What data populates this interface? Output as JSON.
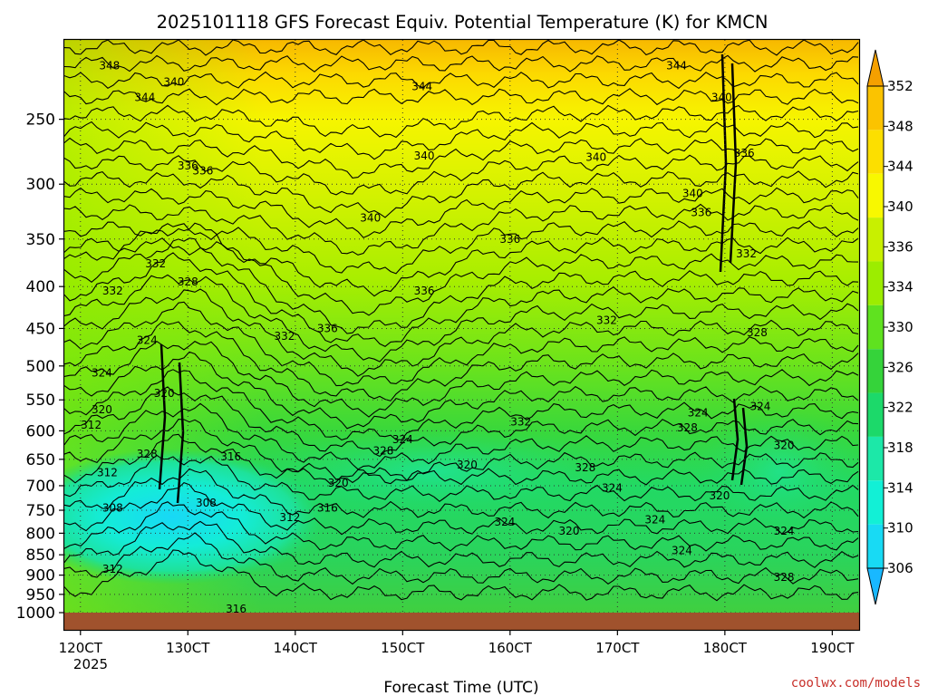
{
  "chart_data": {
    "type": "contour",
    "title": "2025101118 GFS Forecast Equiv. Potential Temperature (K) for KMCN",
    "xlabel": "Forecast Time (UTC)",
    "ylabel": "",
    "x_ticks": [
      "120CT",
      "130CT",
      "140CT",
      "150CT",
      "160CT",
      "170CT",
      "180CT",
      "190CT"
    ],
    "x_tick_values": [
      12,
      13,
      14,
      15,
      16,
      17,
      18,
      19
    ],
    "x_year_label": "2025",
    "xlim": [
      11.85,
      19.25
    ],
    "y_ticks": [
      "250",
      "300",
      "350",
      "400",
      "450",
      "500",
      "550",
      "600",
      "650",
      "700",
      "750",
      "800",
      "850",
      "900",
      "950",
      "1000"
    ],
    "y_tick_values": [
      250,
      300,
      350,
      400,
      450,
      500,
      550,
      600,
      650,
      700,
      750,
      800,
      850,
      900,
      950,
      1000
    ],
    "ylim": [
      200,
      1015
    ],
    "y_scale": "log-pressure (inverted)",
    "colorbar": {
      "labels": [
        "352",
        "348",
        "344",
        "340",
        "336",
        "334",
        "330",
        "326",
        "322",
        "318",
        "314",
        "310",
        "306"
      ],
      "colors": [
        "#f5a000",
        "#fbc300",
        "#fcdf00",
        "#f8f800",
        "#c8f000",
        "#9ced00",
        "#5fe21f",
        "#35d33a",
        "#1cd96a",
        "#1ce8a8",
        "#12f0d6",
        "#18daf4",
        "#19b8ff"
      ]
    },
    "ground_color": "#a0522d",
    "contour_labels": [
      {
        "text": "348",
        "t": 12.27,
        "p": 215
      },
      {
        "text": "340",
        "t": 12.87,
        "p": 225
      },
      {
        "text": "344",
        "t": 12.6,
        "p": 235
      },
      {
        "text": "344",
        "t": 15.18,
        "p": 228
      },
      {
        "text": "344",
        "t": 17.55,
        "p": 215
      },
      {
        "text": "340",
        "t": 17.97,
        "p": 235
      },
      {
        "text": "336",
        "t": 13.0,
        "p": 285
      },
      {
        "text": "336",
        "t": 13.14,
        "p": 289
      },
      {
        "text": "340",
        "t": 15.2,
        "p": 277
      },
      {
        "text": "340",
        "t": 16.8,
        "p": 278
      },
      {
        "text": "336",
        "t": 18.18,
        "p": 275
      },
      {
        "text": "340",
        "t": 17.7,
        "p": 308
      },
      {
        "text": "336",
        "t": 17.78,
        "p": 325
      },
      {
        "text": "340",
        "t": 14.7,
        "p": 330
      },
      {
        "text": "336",
        "t": 16.0,
        "p": 350
      },
      {
        "text": "332",
        "t": 18.2,
        "p": 365
      },
      {
        "text": "332",
        "t": 12.7,
        "p": 375
      },
      {
        "text": "328",
        "t": 13.0,
        "p": 395
      },
      {
        "text": "332",
        "t": 12.3,
        "p": 405
      },
      {
        "text": "336",
        "t": 15.2,
        "p": 405
      },
      {
        "text": "332",
        "t": 13.9,
        "p": 460
      },
      {
        "text": "336",
        "t": 14.3,
        "p": 450
      },
      {
        "text": "332",
        "t": 16.9,
        "p": 440
      },
      {
        "text": "328",
        "t": 18.3,
        "p": 455
      },
      {
        "text": "324",
        "t": 12.62,
        "p": 465
      },
      {
        "text": "324",
        "t": 12.2,
        "p": 510
      },
      {
        "text": "320",
        "t": 12.78,
        "p": 540
      },
      {
        "text": "320",
        "t": 12.2,
        "p": 565
      },
      {
        "text": "312",
        "t": 12.1,
        "p": 590
      },
      {
        "text": "324",
        "t": 17.75,
        "p": 570
      },
      {
        "text": "324",
        "t": 18.33,
        "p": 560
      },
      {
        "text": "332",
        "t": 16.1,
        "p": 585
      },
      {
        "text": "328",
        "t": 17.65,
        "p": 595
      },
      {
        "text": "324",
        "t": 15.0,
        "p": 615
      },
      {
        "text": "320",
        "t": 18.55,
        "p": 625
      },
      {
        "text": "328",
        "t": 12.62,
        "p": 640
      },
      {
        "text": "316",
        "t": 13.4,
        "p": 645
      },
      {
        "text": "328",
        "t": 14.82,
        "p": 635
      },
      {
        "text": "320",
        "t": 15.6,
        "p": 660
      },
      {
        "text": "328",
        "t": 16.7,
        "p": 665
      },
      {
        "text": "312",
        "t": 12.25,
        "p": 675
      },
      {
        "text": "320",
        "t": 14.4,
        "p": 695
      },
      {
        "text": "324",
        "t": 16.95,
        "p": 705
      },
      {
        "text": "320",
        "t": 17.95,
        "p": 720
      },
      {
        "text": "308",
        "t": 12.3,
        "p": 745
      },
      {
        "text": "308",
        "t": 13.17,
        "p": 735
      },
      {
        "text": "316",
        "t": 14.3,
        "p": 745
      },
      {
        "text": "312",
        "t": 13.95,
        "p": 765
      },
      {
        "text": "324",
        "t": 17.35,
        "p": 770
      },
      {
        "text": "324",
        "t": 15.95,
        "p": 775
      },
      {
        "text": "320",
        "t": 16.55,
        "p": 795
      },
      {
        "text": "324",
        "t": 18.55,
        "p": 795
      },
      {
        "text": "324",
        "t": 17.6,
        "p": 840
      },
      {
        "text": "312",
        "t": 12.3,
        "p": 885
      },
      {
        "text": "328",
        "t": 18.55,
        "p": 905
      },
      {
        "text": "316",
        "t": 13.45,
        "p": 990
      }
    ]
  },
  "credit": "coolwx.com/models"
}
